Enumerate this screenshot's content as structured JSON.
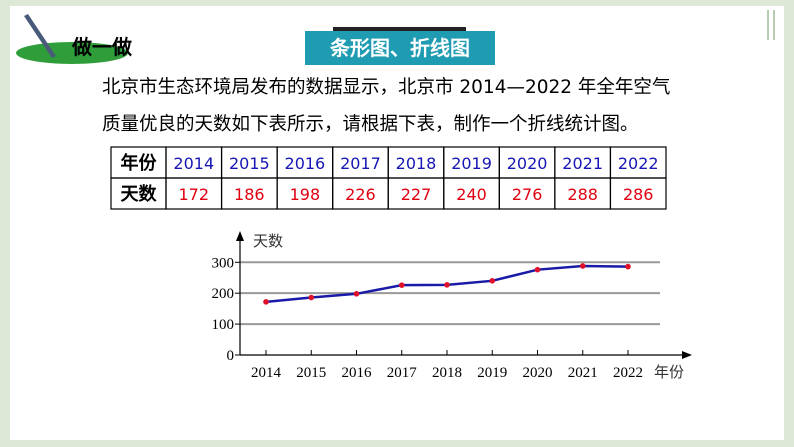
{
  "header": {
    "title": "做一做",
    "banner": "条形图、折线图"
  },
  "paragraph": {
    "lines": [
      "北京市生态环境局发布的数据显示，北京市 2014—2022 年全年空气",
      "质量优良的天数如下表所示，请根据下表，制作一个折线统计图。"
    ]
  },
  "table": {
    "rows": [
      [
        "年份",
        "2014",
        "2015",
        "2016",
        "2017",
        "2018",
        "2019",
        "2020",
        "2021",
        "2022"
      ],
      [
        "天数",
        "172",
        "186",
        "198",
        "226",
        "227",
        "240",
        "276",
        "288",
        "286"
      ]
    ]
  },
  "chart_data": {
    "type": "line",
    "x_label": "年份",
    "y_label": "天数",
    "categories": [
      "2014",
      "2015",
      "2016",
      "2017",
      "2018",
      "2019",
      "2020",
      "2021",
      "2022"
    ],
    "series": [
      {
        "color": "#1a1aa8",
        "marker_color": "#e0102a",
        "values": [
          172,
          186,
          198,
          226,
          227,
          240,
          276,
          288,
          286
        ]
      }
    ],
    "ylim": [
      0,
      330
    ],
    "yticks": [
      0,
      100,
      200,
      300
    ],
    "grid": true
  }
}
